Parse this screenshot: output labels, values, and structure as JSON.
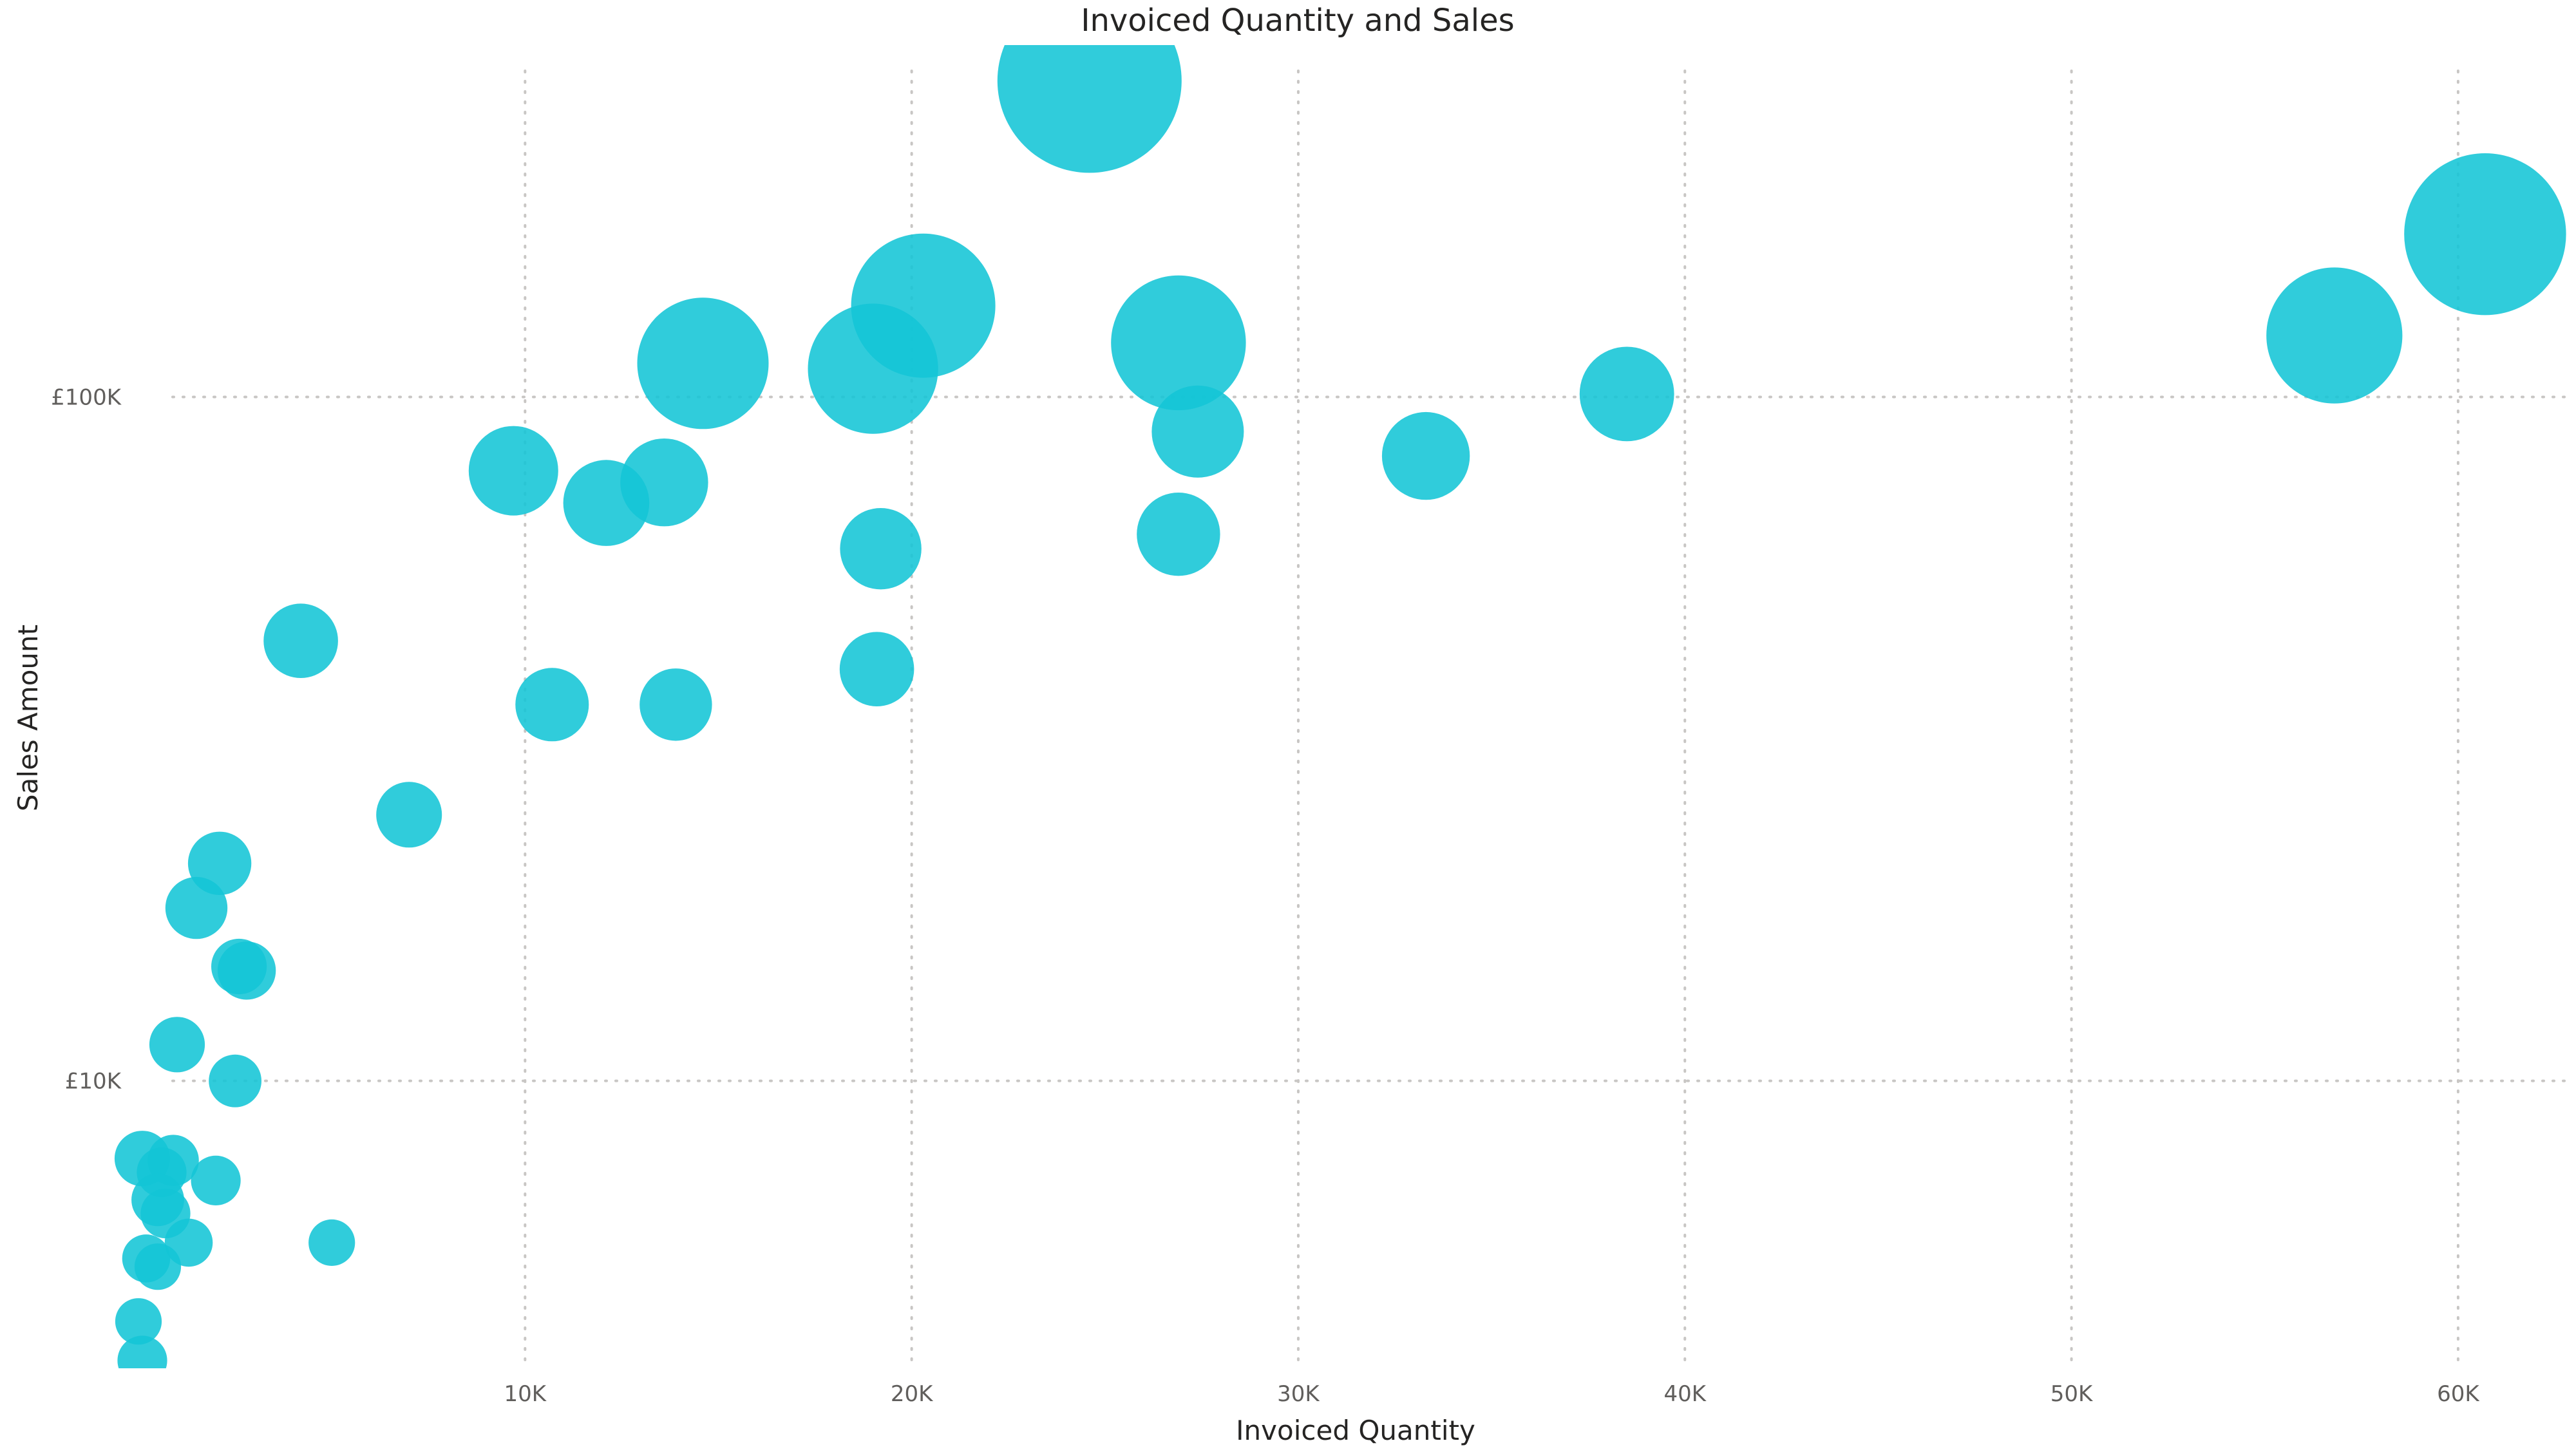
{
  "chart_data": {
    "type": "scatter",
    "title": "Invoiced Quantity and Sales",
    "xlabel": "Invoiced Quantity",
    "ylabel": "Sales Amount",
    "x_ticks": [
      {
        "value": 10000,
        "label": "10K"
      },
      {
        "value": 20000,
        "label": "20K"
      },
      {
        "value": 30000,
        "label": "30K"
      },
      {
        "value": 40000,
        "label": "40K"
      },
      {
        "value": 50000,
        "label": "50K"
      },
      {
        "value": 60000,
        "label": "60K"
      }
    ],
    "y_ticks": [
      {
        "value": 10000,
        "label": "£10K"
      },
      {
        "value": 100000,
        "label": "£100K"
      }
    ],
    "xlim": [
      0,
      62800
    ],
    "ylim": [
      3800,
      320000
    ],
    "y_scale": "log",
    "grid": true,
    "bubble_color": "#13C5D6",
    "series": [
      {
        "points": [
          {
            "x": 24600,
            "y": 290000,
            "size": 220000
          },
          {
            "x": 60700,
            "y": 173000,
            "size": 170000
          },
          {
            "x": 20300,
            "y": 136000,
            "size": 135000
          },
          {
            "x": 56800,
            "y": 123000,
            "size": 120000
          },
          {
            "x": 26900,
            "y": 120000,
            "size": 118000
          },
          {
            "x": 14600,
            "y": 112000,
            "size": 112000
          },
          {
            "x": 19000,
            "y": 110000,
            "size": 110000
          },
          {
            "x": 38500,
            "y": 101000,
            "size": 58000
          },
          {
            "x": 27400,
            "y": 89000,
            "size": 55000
          },
          {
            "x": 9700,
            "y": 78000,
            "size": 52000
          },
          {
            "x": 33300,
            "y": 82000,
            "size": 50000
          },
          {
            "x": 13600,
            "y": 75000,
            "size": 50000
          },
          {
            "x": 12100,
            "y": 70000,
            "size": 48000
          },
          {
            "x": 26900,
            "y": 63000,
            "size": 45000
          },
          {
            "x": 19200,
            "y": 60000,
            "size": 43000
          },
          {
            "x": 4200,
            "y": 44000,
            "size": 36000
          },
          {
            "x": 19100,
            "y": 40000,
            "size": 36000
          },
          {
            "x": 10700,
            "y": 35500,
            "size": 35000
          },
          {
            "x": 13900,
            "y": 35500,
            "size": 34000
          },
          {
            "x": 7000,
            "y": 24500,
            "size": 28000
          },
          {
            "x": 2100,
            "y": 20800,
            "size": 26000
          },
          {
            "x": 1500,
            "y": 17900,
            "size": 25000
          },
          {
            "x": 2800,
            "y": 14500,
            "size": 22000
          },
          {
            "x": 2600,
            "y": 14700,
            "size": 20000
          },
          {
            "x": 1000,
            "y": 11300,
            "size": 20000
          },
          {
            "x": 2500,
            "y": 10000,
            "size": 18000
          },
          {
            "x": 100,
            "y": 7700,
            "size": 20000
          },
          {
            "x": 900,
            "y": 7650,
            "size": 17000
          },
          {
            "x": 600,
            "y": 7350,
            "size": 16000
          },
          {
            "x": 2000,
            "y": 7150,
            "size": 16000
          },
          {
            "x": 500,
            "y": 6700,
            "size": 18000
          },
          {
            "x": 700,
            "y": 6400,
            "size": 16000
          },
          {
            "x": 1300,
            "y": 5800,
            "size": 15000
          },
          {
            "x": 5000,
            "y": 5800,
            "size": 14000
          },
          {
            "x": 200,
            "y": 5500,
            "size": 15000
          },
          {
            "x": 500,
            "y": 5350,
            "size": 14000
          },
          {
            "x": 0,
            "y": 4450,
            "size": 14000
          },
          {
            "x": 100,
            "y": 3900,
            "size": 16000
          }
        ]
      }
    ]
  }
}
